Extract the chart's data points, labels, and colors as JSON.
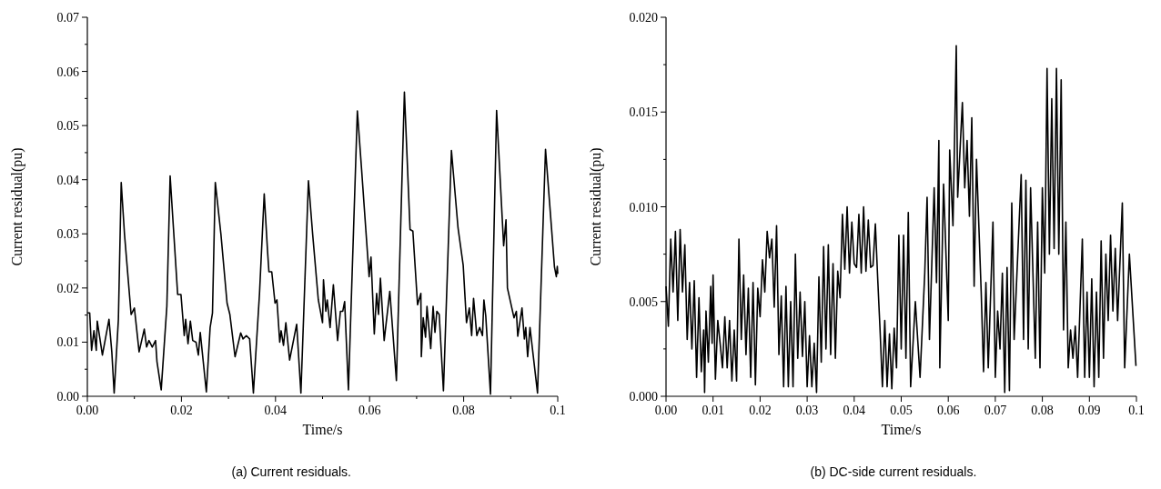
{
  "chart_data": [
    {
      "type": "line",
      "xlabel": "Time/s",
      "ylabel": "Current residual(pu)",
      "annotations": [
        "(a) Current residuals."
      ],
      "xlim": [
        0,
        0.1
      ],
      "ylim": [
        0,
        0.07
      ],
      "xticks": [
        {
          "value": 0,
          "label": "0.00"
        },
        {
          "value": 0.01,
          "label": null
        },
        0.02,
        {
          "value": 0.03,
          "label": null
        },
        0.04,
        {
          "value": 0.05,
          "label": null
        },
        0.06,
        {
          "value": 0.07,
          "label": null
        },
        0.08,
        {
          "value": 0.09,
          "label": null
        },
        0.1
      ],
      "yticks": [
        {
          "value": 0,
          "label": "0.00"
        },
        {
          "value": 0.005,
          "label": null
        },
        0.01,
        {
          "value": 0.015,
          "label": null
        },
        0.02,
        {
          "value": 0.025,
          "label": null
        },
        0.03,
        {
          "value": 0.035,
          "label": null
        },
        0.04,
        {
          "value": 0.045,
          "label": null
        },
        0.05,
        {
          "value": 0.055,
          "label": null
        },
        0.06,
        {
          "value": 0.065,
          "label": null
        },
        0.07
      ],
      "grid": false,
      "series": [
        {
          "color": "#000000",
          "x": [
            0,
            0.0005,
            0.0009,
            0.0014,
            0.0019,
            0.0021,
            0.0032,
            0.0046,
            0.0052,
            0.0057,
            0.0066,
            0.0072,
            0.0079,
            0.0093,
            0.01,
            0.011,
            0.0121,
            0.0126,
            0.0131,
            0.0138,
            0.0145,
            0.0148,
            0.0157,
            0.0169,
            0.0176,
            0.0183,
            0.0192,
            0.0199,
            0.0206,
            0.0209,
            0.0214,
            0.0219,
            0.0224,
            0.0231,
            0.0236,
            0.024,
            0.0253,
            0.0261,
            0.0266,
            0.0272,
            0.0284,
            0.0297,
            0.0303,
            0.0314,
            0.0326,
            0.0331,
            0.0338,
            0.0345,
            0.0353,
            0.0366,
            0.0376,
            0.0383,
            0.0386,
            0.0392,
            0.0399,
            0.0403,
            0.0409,
            0.0412,
            0.0417,
            0.0422,
            0.043,
            0.0445,
            0.0454,
            0.047,
            0.0479,
            0.0491,
            0.05,
            0.0502,
            0.0507,
            0.051,
            0.0516,
            0.0523,
            0.0532,
            0.0538,
            0.0543,
            0.0547,
            0.0555,
            0.0574,
            0.0583,
            0.0599,
            0.0603,
            0.061,
            0.0615,
            0.0619,
            0.0623,
            0.0631,
            0.0643,
            0.0657,
            0.0674,
            0.0686,
            0.0692,
            0.0702,
            0.0709,
            0.071,
            0.0714,
            0.0719,
            0.0722,
            0.073,
            0.0735,
            0.0739,
            0.0743,
            0.0748,
            0.0757,
            0.0774,
            0.0788,
            0.0799,
            0.0806,
            0.0812,
            0.0817,
            0.0821,
            0.0828,
            0.0834,
            0.084,
            0.0843,
            0.0847,
            0.0857,
            0.087,
            0.0885,
            0.089,
            0.0893,
            0.0907,
            0.0912,
            0.0915,
            0.0924,
            0.0929,
            0.0932,
            0.0936,
            0.0941,
            0.0957,
            0.0974,
            0.0993,
            0.0997,
            0.0999,
            0.1
          ],
          "values": [
            0.0154,
            0.0154,
            0.0085,
            0.0121,
            0.0085,
            0.0139,
            0.0076,
            0.0142,
            0.0082,
            0.0006,
            0.0142,
            0.0395,
            0.0299,
            0.0151,
            0.0163,
            0.0082,
            0.0124,
            0.0091,
            0.0103,
            0.0091,
            0.0103,
            0.0064,
            0.0012,
            0.0166,
            0.0407,
            0.0311,
            0.0188,
            0.0188,
            0.0112,
            0.0142,
            0.0097,
            0.0139,
            0.0103,
            0.01,
            0.0076,
            0.0118,
            0.0008,
            0.0127,
            0.0154,
            0.0395,
            0.0299,
            0.0172,
            0.0151,
            0.0073,
            0.0117,
            0.0106,
            0.0112,
            0.0106,
            0.0006,
            0.019,
            0.0374,
            0.0269,
            0.023,
            0.023,
            0.0172,
            0.0178,
            0.01,
            0.0121,
            0.0094,
            0.0136,
            0.0067,
            0.0133,
            0.0006,
            0.0398,
            0.0299,
            0.0178,
            0.0136,
            0.0215,
            0.0157,
            0.0178,
            0.0127,
            0.0206,
            0.0103,
            0.0157,
            0.0157,
            0.0175,
            0.0012,
            0.0527,
            0.0419,
            0.0221,
            0.0257,
            0.0115,
            0.019,
            0.0151,
            0.0218,
            0.0103,
            0.0194,
            0.0029,
            0.0562,
            0.0308,
            0.0305,
            0.0169,
            0.019,
            0.0073,
            0.0145,
            0.0109,
            0.0166,
            0.0088,
            0.0166,
            0.0118,
            0.0157,
            0.0151,
            0.001,
            0.0454,
            0.0311,
            0.0242,
            0.0136,
            0.0163,
            0.0112,
            0.0181,
            0.0112,
            0.0127,
            0.0112,
            0.0178,
            0.0148,
            0.0004,
            0.0528,
            0.0278,
            0.0326,
            0.02,
            0.0145,
            0.0157,
            0.0111,
            0.0163,
            0.0106,
            0.0127,
            0.0073,
            0.0127,
            0.0006,
            0.0456,
            0.0239,
            0.0221,
            0.024,
            0.0226
          ]
        }
      ]
    },
    {
      "type": "line",
      "xlabel": "Time/s",
      "ylabel": "Current residual(pu)",
      "annotations": [
        "(b) DC-side current residuals."
      ],
      "xlim": [
        0,
        0.1
      ],
      "ylim": [
        0,
        0.02
      ],
      "xticks": [
        {
          "value": 0,
          "label": "0.00"
        },
        0.01,
        0.02,
        0.03,
        0.04,
        0.05,
        0.06,
        0.07,
        0.08,
        0.09,
        0.1
      ],
      "yticks": [
        {
          "value": 0,
          "label": "0.000"
        },
        {
          "value": 0.0025,
          "label": null
        },
        0.005,
        {
          "value": 0.0075,
          "label": null
        },
        {
          "value": 0.01,
          "label": "0.010"
        },
        {
          "value": 0.0125,
          "label": null
        },
        0.015,
        {
          "value": 0.0175,
          "label": null
        },
        {
          "value": 0.02,
          "label": "0.020"
        }
      ],
      "grid": false,
      "series": [
        {
          "color": "#000000",
          "x": [
            0,
            0.0005,
            0.001,
            0.0015,
            0.002,
            0.0025,
            0.003,
            0.0035,
            0.004,
            0.0045,
            0.005,
            0.0055,
            0.006,
            0.0065,
            0.007,
            0.0075,
            0.008,
            0.0082,
            0.0085,
            0.009,
            0.0095,
            0.0098,
            0.01,
            0.0105,
            0.011,
            0.0115,
            0.012,
            0.0125,
            0.013,
            0.0135,
            0.014,
            0.0145,
            0.015,
            0.0155,
            0.016,
            0.0165,
            0.017,
            0.0175,
            0.018,
            0.0185,
            0.019,
            0.0195,
            0.02,
            0.0205,
            0.021,
            0.0215,
            0.022,
            0.0225,
            0.023,
            0.0235,
            0.024,
            0.0245,
            0.025,
            0.0255,
            0.026,
            0.0265,
            0.027,
            0.0275,
            0.028,
            0.0285,
            0.029,
            0.0295,
            0.03,
            0.0305,
            0.031,
            0.0315,
            0.032,
            0.0325,
            0.033,
            0.0335,
            0.034,
            0.0345,
            0.035,
            0.0355,
            0.036,
            0.0365,
            0.037,
            0.0375,
            0.038,
            0.0385,
            0.039,
            0.0395,
            0.04,
            0.0405,
            0.041,
            0.0415,
            0.042,
            0.0425,
            0.043,
            0.0435,
            0.044,
            0.0445,
            0.045,
            0.0455,
            0.046,
            0.0465,
            0.047,
            0.0475,
            0.048,
            0.0485,
            0.049,
            0.0495,
            0.05,
            0.0505,
            0.051,
            0.0515,
            0.052,
            0.053,
            0.054,
            0.055,
            0.0555,
            0.056,
            0.057,
            0.0575,
            0.058,
            0.0582,
            0.059,
            0.06,
            0.0603,
            0.061,
            0.0617,
            0.062,
            0.063,
            0.0635,
            0.064,
            0.0645,
            0.065,
            0.0655,
            0.066,
            0.067,
            0.0675,
            0.068,
            0.0685,
            0.0695,
            0.07,
            0.0705,
            0.071,
            0.0715,
            0.072,
            0.0725,
            0.073,
            0.0735,
            0.074,
            0.0755,
            0.076,
            0.0765,
            0.077,
            0.0775,
            0.0785,
            0.079,
            0.0795,
            0.08,
            0.0805,
            0.081,
            0.0815,
            0.082,
            0.0825,
            0.083,
            0.0835,
            0.084,
            0.0845,
            0.085,
            0.0855,
            0.086,
            0.0865,
            0.087,
            0.0875,
            0.0885,
            0.089,
            0.0895,
            0.09,
            0.0905,
            0.091,
            0.0915,
            0.092,
            0.0925,
            0.093,
            0.0935,
            0.094,
            0.0945,
            0.095,
            0.0955,
            0.096,
            0.097,
            0.0975,
            0.0985,
            0.0999
          ],
          "values": [
            0.0058,
            0.0037,
            0.0083,
            0.0055,
            0.0087,
            0.004,
            0.0088,
            0.0055,
            0.008,
            0.003,
            0.006,
            0.0025,
            0.0061,
            0.001,
            0.0052,
            0.0013,
            0.0035,
            0.0002,
            0.0045,
            0.0018,
            0.0058,
            0.0028,
            0.0064,
            0.0009,
            0.004,
            0.0028,
            0.0015,
            0.0042,
            0.0015,
            0.004,
            0.0008,
            0.0035,
            0.0008,
            0.0083,
            0.003,
            0.0064,
            0.0022,
            0.0057,
            0.001,
            0.006,
            0.0006,
            0.0057,
            0.0042,
            0.0072,
            0.0055,
            0.0087,
            0.0073,
            0.0083,
            0.0047,
            0.009,
            0.0022,
            0.0053,
            0.0005,
            0.0058,
            0.0005,
            0.005,
            0.0005,
            0.0075,
            0.002,
            0.0055,
            0.0021,
            0.005,
            0.0005,
            0.0032,
            0.0005,
            0.0028,
            0.0002,
            0.0063,
            0.0018,
            0.0079,
            0.0025,
            0.008,
            0.0022,
            0.007,
            0.002,
            0.0066,
            0.0052,
            0.0096,
            0.0067,
            0.01,
            0.0065,
            0.0092,
            0.007,
            0.0068,
            0.0096,
            0.0065,
            0.01,
            0.0066,
            0.0093,
            0.0068,
            0.0069,
            0.0091,
            0.0062,
            0.0035,
            0.0005,
            0.004,
            0.0005,
            0.0033,
            0.0004,
            0.0036,
            0.0015,
            0.0085,
            0.0025,
            0.0085,
            0.002,
            0.0097,
            0.0005,
            0.005,
            0.001,
            0.0065,
            0.0105,
            0.003,
            0.011,
            0.006,
            0.0135,
            0.0015,
            0.0112,
            0.004,
            0.013,
            0.009,
            0.0185,
            0.0105,
            0.0155,
            0.011,
            0.0135,
            0.0095,
            0.0147,
            0.0058,
            0.0125,
            0.0055,
            0.0013,
            0.006,
            0.0015,
            0.0092,
            0.001,
            0.0045,
            0.0025,
            0.0065,
            0.0002,
            0.0068,
            0.0003,
            0.0102,
            0.003,
            0.0117,
            0.003,
            0.0114,
            0.0025,
            0.011,
            0.002,
            0.0092,
            0.0015,
            0.011,
            0.0065,
            0.0173,
            0.0075,
            0.0157,
            0.0078,
            0.0173,
            0.0075,
            0.0167,
            0.0035,
            0.0092,
            0.0015,
            0.0035,
            0.002,
            0.0037,
            0.001,
            0.0083,
            0.001,
            0.0055,
            0.001,
            0.0062,
            0.0005,
            0.0055,
            0.001,
            0.0082,
            0.002,
            0.0075,
            0.004,
            0.0085,
            0.0045,
            0.0078,
            0.004,
            0.0102,
            0.0015,
            0.0075,
            0.0016
          ]
        }
      ]
    }
  ]
}
